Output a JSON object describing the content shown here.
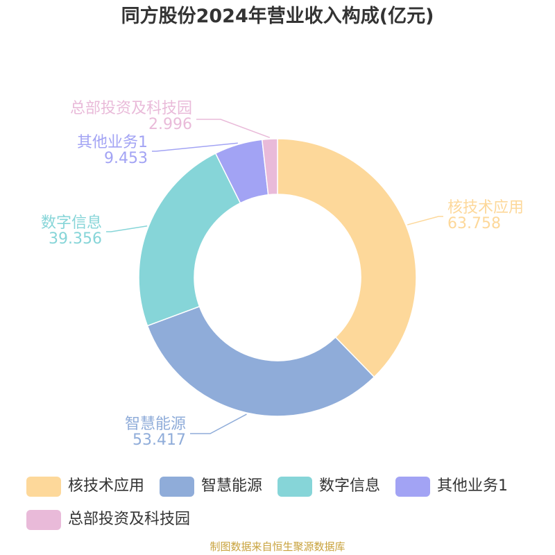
{
  "title": "同方股份2024年营业收入构成(亿元)",
  "source": "制图数据来自恒生聚源数据库",
  "chart_data": {
    "type": "pie",
    "donut": true,
    "title": "同方股份2024年营业收入构成(亿元)",
    "legend_position": "bottom",
    "slices": [
      {
        "name": "核技术应用",
        "value": 63.758,
        "value_label": "63.758",
        "color": "#fdd89a"
      },
      {
        "name": "智慧能源",
        "value": 53.417,
        "value_label": "53.417",
        "color": "#8facd9"
      },
      {
        "name": "数字信息",
        "value": 39.356,
        "value_label": "39.356",
        "color": "#86d5d8"
      },
      {
        "name": "其他业务1",
        "value": 9.453,
        "value_label": "9.453",
        "color": "#a2a3f4"
      },
      {
        "name": "总部投资及科技园",
        "value": 2.996,
        "value_label": "2.996",
        "color": "#e9bad9"
      }
    ]
  }
}
